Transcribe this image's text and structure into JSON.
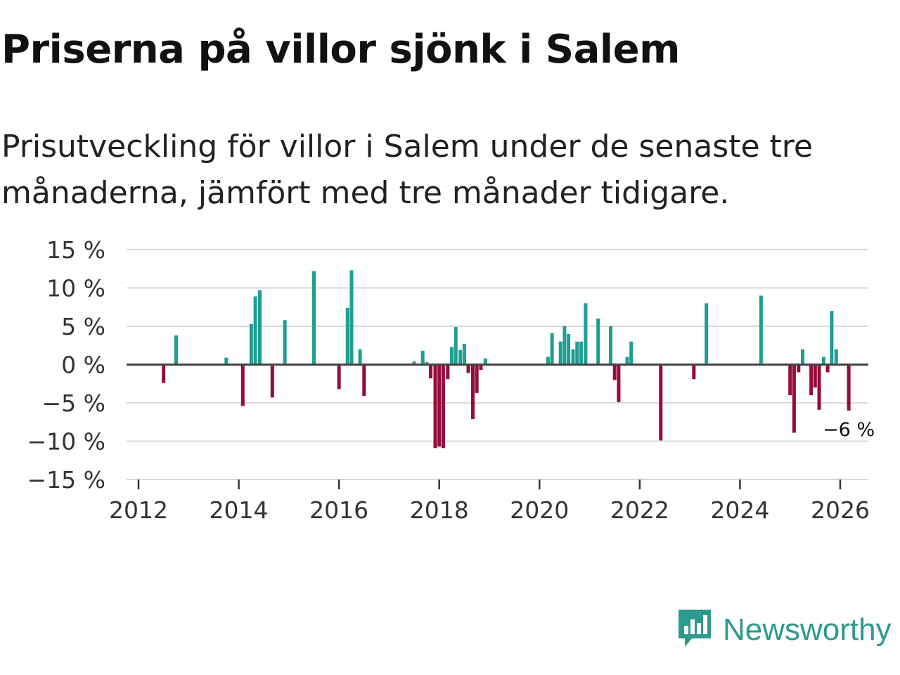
{
  "header": {
    "title": "Priserna på villor sjönk i Salem",
    "subtitle": "Prisutveckling för villor i Salem under de senaste tre månaderna, jämfört med tre månader tidigare."
  },
  "brand": {
    "name": "Newsworthy",
    "icon": "newsworthy-logo-icon"
  },
  "colors": {
    "positive": "#1f9e93",
    "negative": "#940c3d",
    "grid": "#d9d9d9",
    "zero": "#444444",
    "brand": "#2c9a8c"
  },
  "chart_data": {
    "type": "bar",
    "ylim": [
      -15,
      15
    ],
    "xlim": [
      2012,
      2026.8
    ],
    "yticks": [
      15,
      10,
      5,
      0,
      -5,
      -10,
      -15
    ],
    "ytick_labels": [
      "15 %",
      "10 %",
      "5 %",
      "0 %",
      "−5 %",
      "−10 %",
      "−15 %"
    ],
    "xticks": [
      2012,
      2014,
      2016,
      2018,
      2020,
      2022,
      2024,
      2026
    ],
    "xtick_labels": [
      "2012",
      "2014",
      "2016",
      "2018",
      "2020",
      "2022",
      "2024",
      "2026"
    ],
    "annotation": {
      "label": "−6 %",
      "x": 2026.17,
      "y": -6
    },
    "x": [
      2012.5,
      2012.75,
      2013.75,
      2014.08,
      2014.25,
      2014.33,
      2014.42,
      2014.67,
      2014.92,
      2015.5,
      2016.0,
      2016.17,
      2016.25,
      2016.42,
      2016.5,
      2017.5,
      2017.67,
      2017.75,
      2017.83,
      2017.92,
      2018.0,
      2018.08,
      2018.17,
      2018.25,
      2018.33,
      2018.42,
      2018.5,
      2018.58,
      2018.67,
      2018.75,
      2018.83,
      2018.92,
      2020.17,
      2020.25,
      2020.42,
      2020.5,
      2020.58,
      2020.67,
      2020.75,
      2020.83,
      2020.92,
      2021.17,
      2021.42,
      2021.5,
      2021.58,
      2021.75,
      2021.83,
      2022.42,
      2023.08,
      2023.33,
      2024.42,
      2025.0,
      2025.08,
      2025.17,
      2025.25,
      2025.42,
      2025.5,
      2025.58,
      2025.67,
      2025.75,
      2025.83,
      2025.92,
      2026.17
    ],
    "values": [
      -2.4,
      3.8,
      0.9,
      -5.4,
      5.3,
      8.9,
      9.7,
      -4.3,
      5.8,
      12.2,
      -3.2,
      7.4,
      12.3,
      2.0,
      -4.1,
      0.4,
      1.8,
      0.3,
      -1.8,
      -10.9,
      -10.7,
      -10.9,
      -1.9,
      2.3,
      4.9,
      1.9,
      2.7,
      -1.1,
      -7.1,
      -3.7,
      -0.7,
      0.8,
      1.0,
      4.1,
      3.0,
      5.0,
      4.0,
      2.0,
      3.0,
      3.0,
      8.0,
      6.0,
      5.0,
      -2.0,
      -4.9,
      1.0,
      3.0,
      -9.9,
      -1.9,
      8.0,
      9.0,
      -4.0,
      -8.9,
      -1.0,
      2.0,
      -4.0,
      -3.0,
      -5.9,
      1.0,
      -1.0,
      7.0,
      2.0,
      -6.0
    ]
  }
}
